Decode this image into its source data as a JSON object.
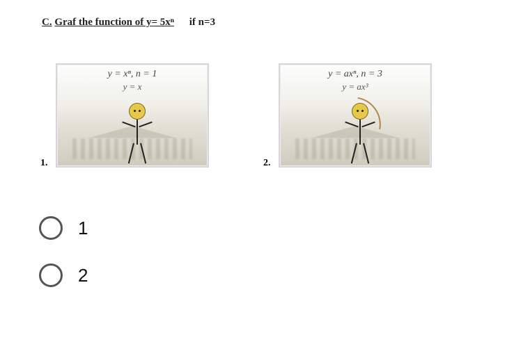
{
  "heading": {
    "prefix": "C.",
    "text": "Graf the function of y= 5xⁿ",
    "condition": "if n=3"
  },
  "panels": [
    {
      "number": "1.",
      "formula_top": "y = xⁿ, n = 1",
      "formula_sub": "y = x",
      "head_color": "#e8c84a",
      "show_curve": false
    },
    {
      "number": "2.",
      "formula_top": "y = axⁿ, n = 3",
      "formula_sub": "y = ax³",
      "head_color": "#e8c84a",
      "show_curve": true
    }
  ],
  "options": [
    {
      "label": "1"
    },
    {
      "label": "2"
    }
  ],
  "colors": {
    "border": "#d6d6d6",
    "text": "#000000",
    "radio_border": "#555555"
  }
}
